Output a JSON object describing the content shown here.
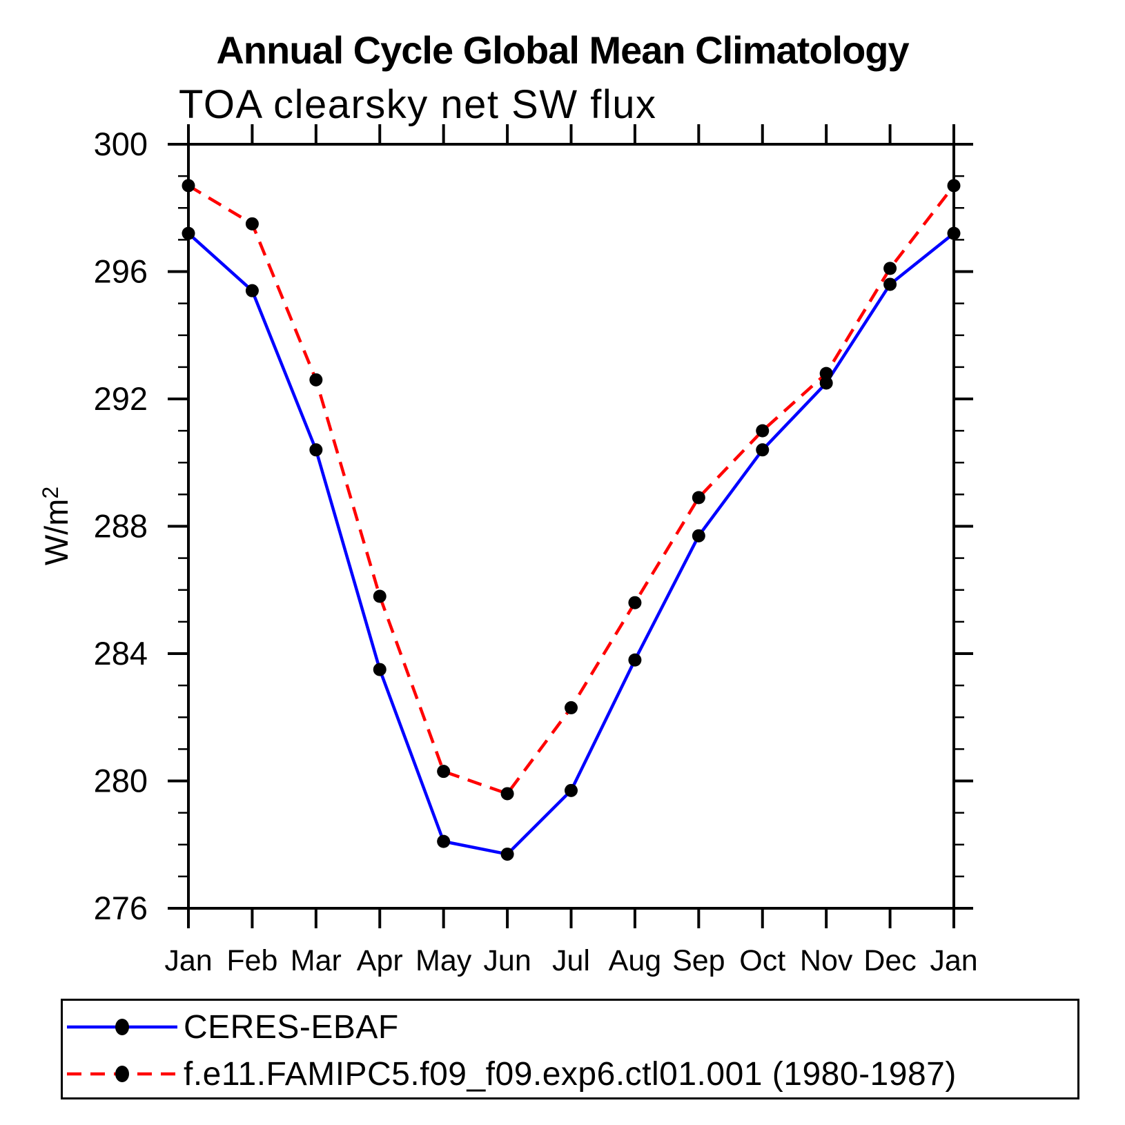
{
  "chart_data": {
    "type": "line",
    "title": "Annual Cycle Global Mean Climatology",
    "subtitle": "TOA clearsky net SW flux",
    "ylabel": "W/m²",
    "xlabel": "",
    "categories": [
      "Jan",
      "Feb",
      "Mar",
      "Apr",
      "May",
      "Jun",
      "Jul",
      "Aug",
      "Sep",
      "Oct",
      "Nov",
      "Dec",
      "Jan"
    ],
    "ylim": [
      276,
      300
    ],
    "ytick_major": [
      300,
      296,
      292,
      288,
      284,
      280,
      276
    ],
    "ytick_minor_step": 1,
    "grid": false,
    "legend_position": "bottom",
    "marker_color": "#000000",
    "axis_color": "#000000",
    "series": [
      {
        "name": "CERES-EBAF",
        "color": "#0000ff",
        "line_style": "solid",
        "marker": "filled-black-circle",
        "values": [
          297.2,
          295.4,
          290.4,
          283.5,
          278.1,
          277.7,
          279.7,
          283.8,
          287.7,
          290.4,
          292.5,
          295.6,
          297.2
        ]
      },
      {
        "name": "f.e11.FAMIPC5.f09_f09.exp6.ctl01.001 (1980-1987)",
        "color": "#ff0000",
        "line_style": "dashed",
        "marker": "filled-black-circle",
        "values": [
          298.7,
          297.5,
          292.6,
          285.8,
          280.3,
          279.6,
          282.3,
          285.6,
          288.9,
          291.0,
          292.8,
          296.1,
          298.7
        ]
      }
    ]
  }
}
